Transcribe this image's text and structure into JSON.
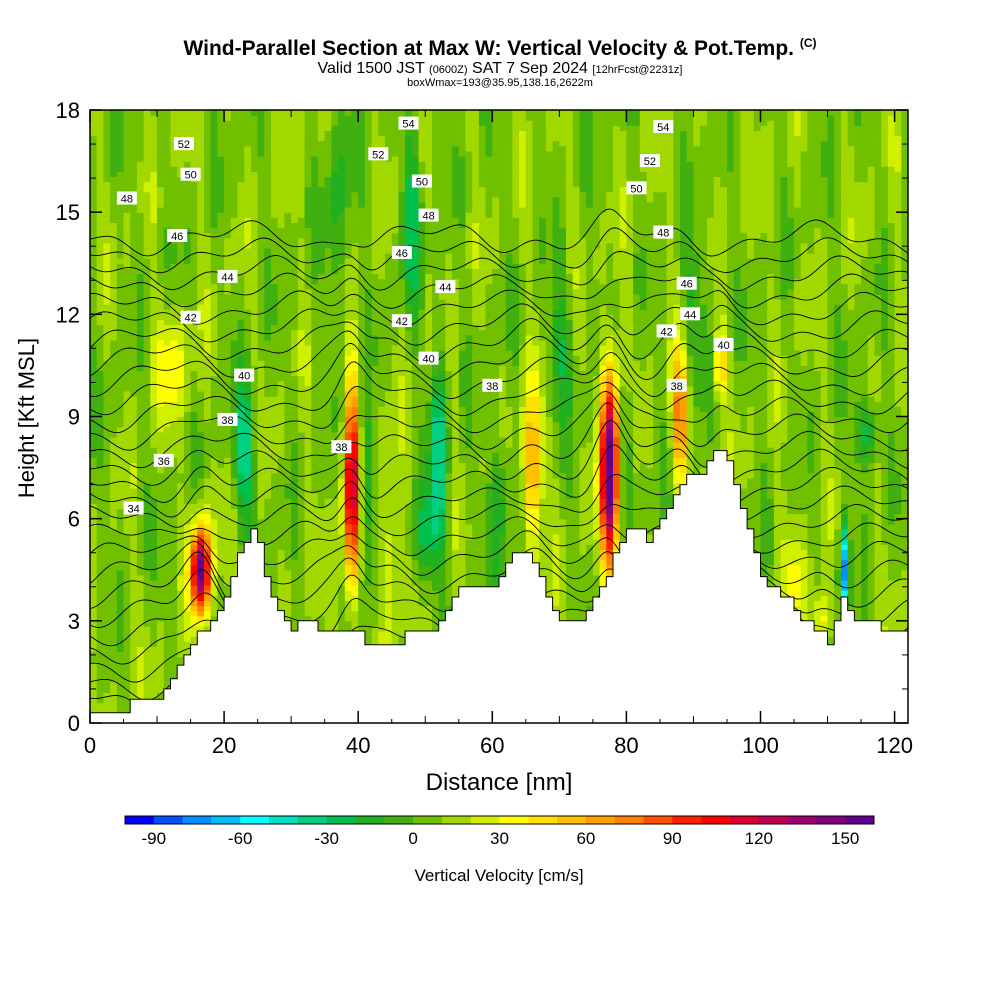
{
  "header": {
    "title": "Wind-Parallel Section at Max W: Vertical Velocity & Pot.Temp.",
    "copyright": "(C)",
    "valid_prefix": "Valid 1500 JST",
    "valid_utc": "(0600Z)",
    "valid_date": "SAT 7 Sep 2024",
    "forecast": "[12hrFcst@2231z]",
    "box_info": "boxWmax=193@35.95,138.16,2622m"
  },
  "chart_data": {
    "type": "heatmap",
    "xlabel": "Distance [nm]",
    "ylabel": "Height [Kft MSL]",
    "xlim": [
      0,
      122
    ],
    "ylim": [
      0,
      18
    ],
    "x_ticks": [
      "0",
      "20",
      "40",
      "60",
      "80",
      "100",
      "120"
    ],
    "y_ticks": [
      "0",
      "3",
      "6",
      "9",
      "12",
      "15",
      "18"
    ],
    "colorbar": {
      "label": "Vertical Velocity [cm/s]",
      "tick_labels": [
        "-90",
        "-60",
        "-30",
        "0",
        "30",
        "60",
        "90",
        "120",
        "150"
      ],
      "min": -100,
      "max": 160,
      "step": 10,
      "colors": [
        "#0000ff",
        "#0050ff",
        "#0090ff",
        "#00c0ff",
        "#00ffff",
        "#00e0c0",
        "#00d080",
        "#00c050",
        "#20b020",
        "#40b010",
        "#70c000",
        "#a0d800",
        "#d0f000",
        "#ffff00",
        "#ffe000",
        "#ffc000",
        "#ffa000",
        "#ff8000",
        "#ff5000",
        "#ff2000",
        "#ff0000",
        "#e00030",
        "#c00050",
        "#a00070",
        "#800080",
        "#600090"
      ]
    },
    "terrain_kft": [
      [
        0,
        0.3
      ],
      [
        2,
        0.3
      ],
      [
        4,
        0.3
      ],
      [
        6,
        0.7
      ],
      [
        8,
        0.7
      ],
      [
        10,
        0.7
      ],
      [
        11,
        1.0
      ],
      [
        12,
        1.3
      ],
      [
        13,
        1.7
      ],
      [
        14,
        2.0
      ],
      [
        15,
        2.3
      ],
      [
        16,
        2.7
      ],
      [
        17,
        2.7
      ],
      [
        18,
        3.0
      ],
      [
        19,
        3.3
      ],
      [
        20,
        3.7
      ],
      [
        21,
        4.3
      ],
      [
        22,
        5.0
      ],
      [
        23,
        5.3
      ],
      [
        24,
        5.7
      ],
      [
        25,
        5.3
      ],
      [
        26,
        4.3
      ],
      [
        27,
        3.7
      ],
      [
        28,
        3.3
      ],
      [
        29,
        3.0
      ],
      [
        30,
        2.7
      ],
      [
        31,
        3.0
      ],
      [
        32,
        3.0
      ],
      [
        33,
        3.0
      ],
      [
        34,
        2.7
      ],
      [
        35,
        2.7
      ],
      [
        36,
        2.7
      ],
      [
        37,
        2.7
      ],
      [
        38,
        2.7
      ],
      [
        39,
        2.7
      ],
      [
        40,
        2.7
      ],
      [
        41,
        2.3
      ],
      [
        42,
        2.3
      ],
      [
        43,
        2.3
      ],
      [
        44,
        2.3
      ],
      [
        45,
        2.3
      ],
      [
        46,
        2.3
      ],
      [
        47,
        2.7
      ],
      [
        48,
        2.7
      ],
      [
        49,
        2.7
      ],
      [
        50,
        2.7
      ],
      [
        51,
        2.7
      ],
      [
        52,
        3.0
      ],
      [
        53,
        3.3
      ],
      [
        54,
        3.7
      ],
      [
        55,
        4.0
      ],
      [
        56,
        4.0
      ],
      [
        57,
        4.0
      ],
      [
        58,
        4.0
      ],
      [
        59,
        4.0
      ],
      [
        60,
        4.0
      ],
      [
        61,
        4.3
      ],
      [
        62,
        4.7
      ],
      [
        63,
        5.0
      ],
      [
        64,
        5.0
      ],
      [
        65,
        5.0
      ],
      [
        66,
        4.7
      ],
      [
        67,
        4.3
      ],
      [
        68,
        3.7
      ],
      [
        69,
        3.3
      ],
      [
        70,
        3.0
      ],
      [
        71,
        3.0
      ],
      [
        72,
        3.0
      ],
      [
        73,
        3.0
      ],
      [
        74,
        3.3
      ],
      [
        75,
        3.7
      ],
      [
        76,
        4.0
      ],
      [
        77,
        4.3
      ],
      [
        78,
        5.0
      ],
      [
        79,
        5.3
      ],
      [
        80,
        5.7
      ],
      [
        81,
        5.7
      ],
      [
        82,
        5.7
      ],
      [
        83,
        5.3
      ],
      [
        84,
        5.7
      ],
      [
        85,
        6.0
      ],
      [
        86,
        6.3
      ],
      [
        87,
        6.7
      ],
      [
        88,
        7.0
      ],
      [
        89,
        7.3
      ],
      [
        90,
        7.3
      ],
      [
        91,
        7.3
      ],
      [
        92,
        7.7
      ],
      [
        93,
        8.0
      ],
      [
        94,
        8.0
      ],
      [
        95,
        7.7
      ],
      [
        96,
        7.0
      ],
      [
        97,
        6.3
      ],
      [
        98,
        5.7
      ],
      [
        99,
        5.0
      ],
      [
        100,
        4.3
      ],
      [
        101,
        4.0
      ],
      [
        102,
        4.0
      ],
      [
        103,
        3.7
      ],
      [
        104,
        3.7
      ],
      [
        105,
        3.3
      ],
      [
        106,
        3.0
      ],
      [
        107,
        3.0
      ],
      [
        108,
        2.7
      ],
      [
        109,
        2.7
      ],
      [
        110,
        2.3
      ],
      [
        111,
        3.0
      ],
      [
        112,
        3.7
      ],
      [
        113,
        3.3
      ],
      [
        114,
        3.0
      ],
      [
        115,
        3.0
      ],
      [
        116,
        3.0
      ],
      [
        117,
        3.0
      ],
      [
        118,
        2.7
      ],
      [
        119,
        2.7
      ],
      [
        120,
        2.7
      ],
      [
        121,
        2.7
      ],
      [
        122,
        2.7
      ]
    ],
    "updrafts": [
      {
        "x": 16.5,
        "y": 4.5,
        "w": 150,
        "sx": 1.4,
        "sy": 1.3
      },
      {
        "x": 12,
        "y": 10.5,
        "w": 25,
        "sx": 3,
        "sy": 1.5
      },
      {
        "x": 39,
        "y": 7,
        "w": 120,
        "sx": 1.1,
        "sy": 3.0
      },
      {
        "x": 45,
        "y": 5,
        "w": 25,
        "sx": 1.5,
        "sy": 3
      },
      {
        "x": 66,
        "y": 7.5,
        "w": 55,
        "sx": 1.5,
        "sy": 2.5
      },
      {
        "x": 77.5,
        "y": 7.5,
        "w": 160,
        "sx": 1.3,
        "sy": 2.8
      },
      {
        "x": 88,
        "y": 9,
        "w": 70,
        "sx": 1.2,
        "sy": 2
      },
      {
        "x": 94,
        "y": 10.5,
        "w": 50,
        "sx": 0.8,
        "sy": 1
      },
      {
        "x": 105,
        "y": 4,
        "w": 20,
        "sx": 2,
        "sy": 1.5
      },
      {
        "x": 109,
        "y": 3,
        "w": 40,
        "sx": 1,
        "sy": 1
      }
    ],
    "downdrafts": [
      {
        "x": 23,
        "y": 8,
        "w": -45,
        "sx": 1.5,
        "sy": 2
      },
      {
        "x": 41,
        "y": 7,
        "w": -40,
        "sx": 0.8,
        "sy": 2.5
      },
      {
        "x": 52,
        "y": 8,
        "w": -45,
        "sx": 1.2,
        "sy": 3
      },
      {
        "x": 50,
        "y": 5.5,
        "w": -30,
        "sx": 2,
        "sy": 1.5
      },
      {
        "x": 61,
        "y": 6.5,
        "w": -30,
        "sx": 1.5,
        "sy": 2
      },
      {
        "x": 70,
        "y": 11,
        "w": -25,
        "sx": 2,
        "sy": 2
      },
      {
        "x": 80,
        "y": 8,
        "w": -25,
        "sx": 1,
        "sy": 2
      },
      {
        "x": 90,
        "y": 12,
        "w": -20,
        "sx": 2,
        "sy": 2
      },
      {
        "x": 112.5,
        "y": 4.5,
        "w": -80,
        "sx": 0.7,
        "sy": 1.3
      },
      {
        "x": 116,
        "y": 8.5,
        "w": -35,
        "sx": 2,
        "sy": 1
      },
      {
        "x": 48,
        "y": 15,
        "w": -30,
        "sx": 1.5,
        "sy": 3
      },
      {
        "x": 37,
        "y": 15,
        "w": -20,
        "sx": 2,
        "sy": 3
      }
    ],
    "isentropes_theta": [
      30,
      31,
      32,
      33,
      34,
      35,
      36,
      37,
      38,
      39,
      40,
      41,
      42,
      43,
      44,
      45,
      46,
      47,
      48,
      49,
      50,
      51,
      52,
      53,
      54,
      55,
      56
    ],
    "isentrope_labels": [
      {
        "text": "34",
        "x": 6.5,
        "y": 6.3
      },
      {
        "text": "36",
        "x": 11,
        "y": 7.7
      },
      {
        "text": "38",
        "x": 20.5,
        "y": 8.9
      },
      {
        "text": "40",
        "x": 23,
        "y": 10.2
      },
      {
        "text": "42",
        "x": 15,
        "y": 11.9
      },
      {
        "text": "44",
        "x": 20.5,
        "y": 13.1
      },
      {
        "text": "46",
        "x": 13,
        "y": 14.3
      },
      {
        "text": "48",
        "x": 5.5,
        "y": 15.4
      },
      {
        "text": "50",
        "x": 15,
        "y": 16.1
      },
      {
        "text": "52",
        "x": 14,
        "y": 17.0
      },
      {
        "text": "38",
        "x": 37.5,
        "y": 8.1
      },
      {
        "text": "40",
        "x": 50.5,
        "y": 10.7
      },
      {
        "text": "42",
        "x": 46.5,
        "y": 11.8
      },
      {
        "text": "44",
        "x": 53,
        "y": 12.8
      },
      {
        "text": "46",
        "x": 46.5,
        "y": 13.8
      },
      {
        "text": "48",
        "x": 50.5,
        "y": 14.9
      },
      {
        "text": "50",
        "x": 49.5,
        "y": 15.9
      },
      {
        "text": "52",
        "x": 43,
        "y": 16.7
      },
      {
        "text": "54",
        "x": 47.5,
        "y": 17.6
      },
      {
        "text": "38",
        "x": 60,
        "y": 9.9
      },
      {
        "text": "38",
        "x": 87.5,
        "y": 9.9
      },
      {
        "text": "40",
        "x": 94.5,
        "y": 11.1
      },
      {
        "text": "42",
        "x": 86,
        "y": 11.5
      },
      {
        "text": "44",
        "x": 89.5,
        "y": 12.0
      },
      {
        "text": "46",
        "x": 89,
        "y": 12.9
      },
      {
        "text": "48",
        "x": 85.5,
        "y": 14.4
      },
      {
        "text": "50",
        "x": 81.5,
        "y": 15.7
      },
      {
        "text": "52",
        "x": 83.5,
        "y": 16.5
      },
      {
        "text": "54",
        "x": 85.5,
        "y": 17.5
      }
    ]
  }
}
